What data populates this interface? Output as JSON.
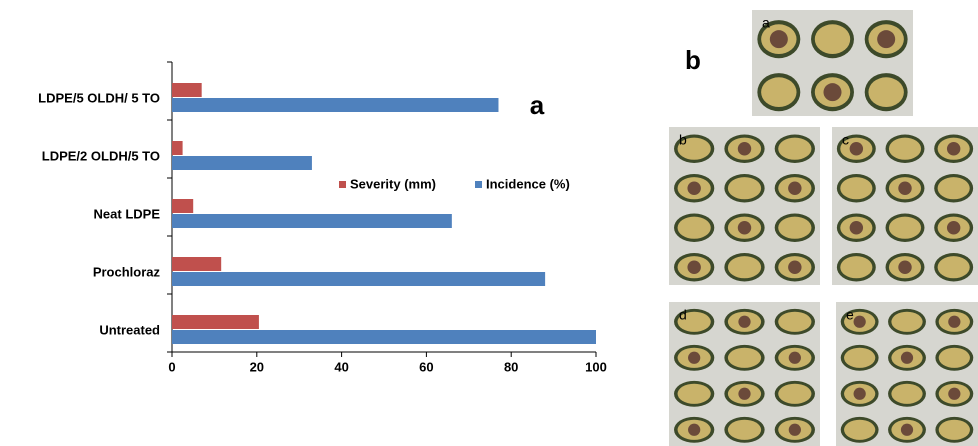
{
  "chart_data": {
    "type": "bar",
    "orientation": "horizontal",
    "panel_label": "a",
    "categories": [
      "LDPE/5 OLDH/ 5 TO",
      "LDPE/2 OLDH/5 TO",
      "Neat LDPE",
      "Prochloraz",
      "Untreated"
    ],
    "series": [
      {
        "name": "Severity (mm)",
        "color": "#c0504d",
        "values": [
          7,
          2.5,
          5,
          11.6,
          20.5
        ]
      },
      {
        "name": "Incidence (%)",
        "color": "#4f81bd",
        "values": [
          77,
          33,
          66,
          88,
          100
        ]
      }
    ],
    "xlim": [
      0,
      100
    ],
    "xticks": [
      0,
      20,
      40,
      60,
      80,
      100
    ],
    "grid": false
  },
  "photo_panel": {
    "panel_label": "b",
    "photo_labels": [
      "a",
      "b",
      "c",
      "d",
      "e"
    ]
  }
}
